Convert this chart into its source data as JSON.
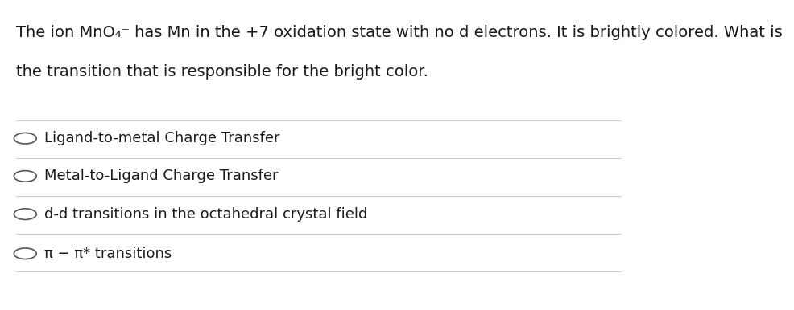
{
  "background_color": "#ffffff",
  "question_line1": "The ion MnO₄⁻ has Mn in the +7 oxidation state with no d electrons. It is brightly colored. What is",
  "question_line2": "the transition that is responsible for the bright color.",
  "options": [
    "Ligand-to-metal Charge Transfer",
    "Metal-to-Ligand Charge Transfer",
    "d-d transitions in the octahedral crystal field",
    "π − π* transitions"
  ],
  "divider_color": "#cccccc",
  "text_color": "#1a1a1a",
  "circle_color": "#555555",
  "question_fontsize": 14,
  "option_fontsize": 13,
  "fig_width": 9.86,
  "fig_height": 3.86
}
